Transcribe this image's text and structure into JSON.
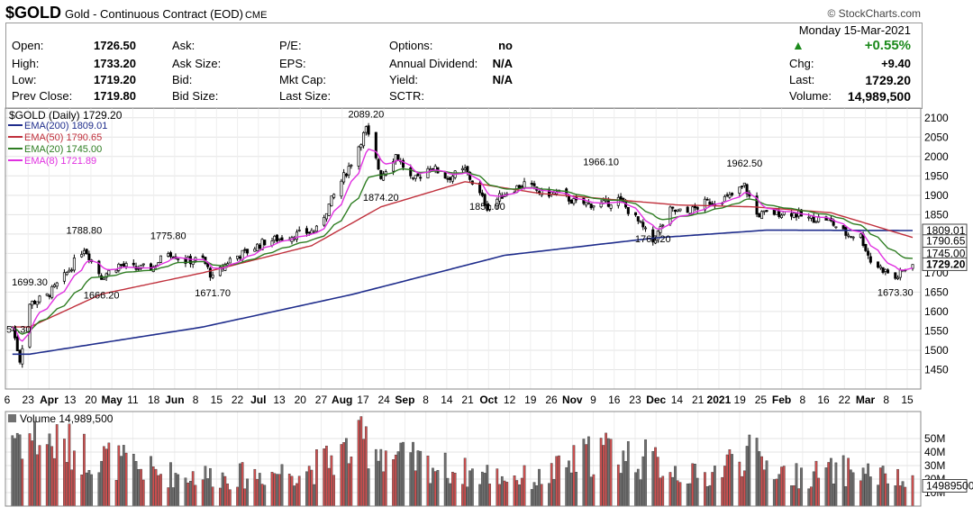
{
  "header": {
    "symbol": "$GOLD",
    "name": "Gold - Continuous Contract (EOD)",
    "exchange": "CME",
    "brand": "© StockCharts.com"
  },
  "quote": {
    "left": [
      {
        "label": "Open:",
        "value": "1726.50"
      },
      {
        "label": "High:",
        "value": "1733.20"
      },
      {
        "label": "Low:",
        "value": "1719.20"
      },
      {
        "label": "Prev Close:",
        "value": "1719.80"
      }
    ],
    "col2": [
      "Ask:",
      "Ask Size:",
      "Bid:",
      "Bid Size:"
    ],
    "col3": [
      "P/E:",
      "EPS:",
      "Mkt Cap:",
      "Last Size:"
    ],
    "col4": [
      {
        "label": "Options:",
        "value": "no"
      },
      {
        "label": "Annual Dividend:",
        "value": "N/A"
      },
      {
        "label": "Yield:",
        "value": "N/A"
      },
      {
        "label": "SCTR:",
        "value": ""
      }
    ],
    "date": "Monday  15-Mar-2021",
    "change_pct": "+0.55%",
    "chg_label": "Chg:",
    "chg_value": "+9.40",
    "last_label": "Last:",
    "last_value": "1729.20",
    "volume_label": "Volume:",
    "volume_value": "14,989,500",
    "up_color": "#1c8a1c"
  },
  "chart_data": [
    {
      "type": "candlestick",
      "title": "$GOLD (Daily) 1729.20",
      "ylim": [
        1400,
        2125
      ],
      "yticks": [
        1450,
        1500,
        1550,
        1600,
        1650,
        1700,
        1750,
        1800,
        1850,
        1900,
        1950,
        2000,
        2050,
        2100
      ],
      "x_range": [
        "2020-03-23",
        "2021-03-15"
      ],
      "xtick_labels": [
        {
          "label": "6",
          "bold": false
        },
        {
          "label": "23",
          "bold": false
        },
        {
          "label": "Apr",
          "bold": true
        },
        {
          "label": "13",
          "bold": false
        },
        {
          "label": "20",
          "bold": false
        },
        {
          "label": "May",
          "bold": true
        },
        {
          "label": "11",
          "bold": false
        },
        {
          "label": "18",
          "bold": false
        },
        {
          "label": "Jun",
          "bold": true
        },
        {
          "label": "8",
          "bold": false
        },
        {
          "label": "15",
          "bold": false
        },
        {
          "label": "22",
          "bold": false
        },
        {
          "label": "Jul",
          "bold": true
        },
        {
          "label": "13",
          "bold": false
        },
        {
          "label": "20",
          "bold": false
        },
        {
          "label": "27",
          "bold": false
        },
        {
          "label": "Aug",
          "bold": true
        },
        {
          "label": "17",
          "bold": false
        },
        {
          "label": "24",
          "bold": false
        },
        {
          "label": "Sep",
          "bold": true
        },
        {
          "label": "8",
          "bold": false
        },
        {
          "label": "14",
          "bold": false
        },
        {
          "label": "21",
          "bold": false
        },
        {
          "label": "Oct",
          "bold": true
        },
        {
          "label": "12",
          "bold": false
        },
        {
          "label": "19",
          "bold": false
        },
        {
          "label": "26",
          "bold": false
        },
        {
          "label": "Nov",
          "bold": true
        },
        {
          "label": "9",
          "bold": false
        },
        {
          "label": "16",
          "bold": false
        },
        {
          "label": "23",
          "bold": false
        },
        {
          "label": "Dec",
          "bold": true
        },
        {
          "label": "14",
          "bold": false
        },
        {
          "label": "21",
          "bold": false
        },
        {
          "label": "2021",
          "bold": true
        },
        {
          "label": "19",
          "bold": false
        },
        {
          "label": "25",
          "bold": false
        },
        {
          "label": "Feb",
          "bold": true
        },
        {
          "label": "8",
          "bold": false
        },
        {
          "label": "16",
          "bold": false
        },
        {
          "label": "22",
          "bold": false
        },
        {
          "label": "Mar",
          "bold": true
        },
        {
          "label": "8",
          "bold": false
        },
        {
          "label": "15",
          "bold": false
        }
      ],
      "legend": [
        {
          "label": "EMA(200) 1809.01",
          "color": "#1f2d8c"
        },
        {
          "label": "EMA(50) 1790.65",
          "color": "#c0303c"
        },
        {
          "label": "EMA(20) 1745.00",
          "color": "#2e7d22"
        },
        {
          "label": "EMA(8) 1721.89",
          "color": "#e030e0"
        }
      ],
      "annotations": [
        {
          "label": "1699.30",
          "date": "2020-03-23",
          "value": 1699.3
        },
        {
          "label": "1788.80",
          "date": "2020-04-14",
          "value": 1788.8
        },
        {
          "label": "1666.20",
          "date": "2020-04-21",
          "value": 1666.2
        },
        {
          "label": "1775.80",
          "date": "2020-05-18",
          "value": 1775.8
        },
        {
          "label": "1671.70",
          "date": "2020-06-05",
          "value": 1671.7
        },
        {
          "label": "2089.20",
          "date": "2020-08-06",
          "value": 2089.2
        },
        {
          "label": "1874.20",
          "date": "2020-08-12",
          "value": 1874.2
        },
        {
          "label": "1851.00",
          "date": "2020-09-24",
          "value": 1851.0
        },
        {
          "label": "1966.10",
          "date": "2020-11-09",
          "value": 1966.1
        },
        {
          "label": "1767.20",
          "date": "2020-11-30",
          "value": 1767.2
        },
        {
          "label": "1962.50",
          "date": "2021-01-06",
          "value": 1962.5
        },
        {
          "label": "1673.30",
          "date": "2021-03-08",
          "value": 1673.3
        }
      ],
      "left_edge_label": "54.30",
      "price_anchors": [
        [
          "2020-03-16",
          1560
        ],
        [
          "2020-03-19",
          1475
        ],
        [
          "2020-03-23",
          1620
        ],
        [
          "2020-03-30",
          1640
        ],
        [
          "2020-04-06",
          1690
        ],
        [
          "2020-04-14",
          1765
        ],
        [
          "2020-04-21",
          1690
        ],
        [
          "2020-04-28",
          1720
        ],
        [
          "2020-05-05",
          1710
        ],
        [
          "2020-05-12",
          1715
        ],
        [
          "2020-05-18",
          1755
        ],
        [
          "2020-05-25",
          1730
        ],
        [
          "2020-06-01",
          1735
        ],
        [
          "2020-06-05",
          1685
        ],
        [
          "2020-06-12",
          1735
        ],
        [
          "2020-06-19",
          1755
        ],
        [
          "2020-06-26",
          1780
        ],
        [
          "2020-07-03",
          1790
        ],
        [
          "2020-07-10",
          1800
        ],
        [
          "2020-07-17",
          1810
        ],
        [
          "2020-07-24",
          1900
        ],
        [
          "2020-07-31",
          1985
        ],
        [
          "2020-08-06",
          2070
        ],
        [
          "2020-08-12",
          1950
        ],
        [
          "2020-08-18",
          2005
        ],
        [
          "2020-08-25",
          1935
        ],
        [
          "2020-09-01",
          1975
        ],
        [
          "2020-09-08",
          1945
        ],
        [
          "2020-09-15",
          1965
        ],
        [
          "2020-09-24",
          1870
        ],
        [
          "2020-10-01",
          1905
        ],
        [
          "2020-10-09",
          1930
        ],
        [
          "2020-10-16",
          1905
        ],
        [
          "2020-10-23",
          1905
        ],
        [
          "2020-10-30",
          1880
        ],
        [
          "2020-11-09",
          1875
        ],
        [
          "2020-11-16",
          1890
        ],
        [
          "2020-11-23",
          1840
        ],
        [
          "2020-11-30",
          1780
        ],
        [
          "2020-12-07",
          1860
        ],
        [
          "2020-12-14",
          1855
        ],
        [
          "2020-12-21",
          1880
        ],
        [
          "2020-12-31",
          1895
        ],
        [
          "2021-01-06",
          1925
        ],
        [
          "2021-01-11",
          1850
        ],
        [
          "2021-01-19",
          1855
        ],
        [
          "2021-01-25",
          1855
        ],
        [
          "2021-02-01",
          1840
        ],
        [
          "2021-02-08",
          1840
        ],
        [
          "2021-02-16",
          1800
        ],
        [
          "2021-02-22",
          1795
        ],
        [
          "2021-02-26",
          1730
        ],
        [
          "2021-03-05",
          1700
        ],
        [
          "2021-03-08",
          1685
        ],
        [
          "2021-03-15",
          1729
        ]
      ],
      "ema200_anchors": [
        [
          "2020-03-23",
          1490
        ],
        [
          "2020-06-01",
          1560
        ],
        [
          "2020-08-01",
          1645
        ],
        [
          "2020-10-01",
          1745
        ],
        [
          "2020-12-01",
          1790
        ],
        [
          "2021-01-15",
          1810
        ],
        [
          "2021-03-15",
          1809
        ]
      ],
      "ema50_anchors": [
        [
          "2020-03-23",
          1560
        ],
        [
          "2020-04-21",
          1645
        ],
        [
          "2020-06-01",
          1700
        ],
        [
          "2020-07-15",
          1770
        ],
        [
          "2020-08-12",
          1870
        ],
        [
          "2020-09-15",
          1935
        ],
        [
          "2020-10-15",
          1905
        ],
        [
          "2020-12-10",
          1875
        ],
        [
          "2021-01-10",
          1870
        ],
        [
          "2021-02-10",
          1855
        ],
        [
          "2021-03-15",
          1791
        ]
      ]
    },
    {
      "type": "bar",
      "title": "Volume 14,989,500",
      "ylim": [
        0,
        70
      ],
      "yticks": [
        10,
        20,
        30,
        40,
        50
      ],
      "ytick_labels": [
        "10M",
        "20M",
        "30M",
        "40M",
        "50M"
      ],
      "last_value_label": "14989500",
      "up_color": "#d05050",
      "down_color": "#707070",
      "volume_anchors": [
        [
          "2020-03-16",
          55
        ],
        [
          "2020-04-14",
          40
        ],
        [
          "2020-05-15",
          24
        ],
        [
          "2020-06-15",
          22
        ],
        [
          "2020-07-15",
          28
        ],
        [
          "2020-08-06",
          48
        ],
        [
          "2020-08-20",
          35
        ],
        [
          "2020-09-15",
          25
        ],
        [
          "2020-10-15",
          20
        ],
        [
          "2020-11-09",
          42
        ],
        [
          "2020-11-30",
          33
        ],
        [
          "2020-12-20",
          20
        ],
        [
          "2021-01-06",
          40
        ],
        [
          "2021-01-25",
          22
        ],
        [
          "2021-02-20",
          27
        ],
        [
          "2021-03-15",
          16
        ]
      ]
    }
  ]
}
